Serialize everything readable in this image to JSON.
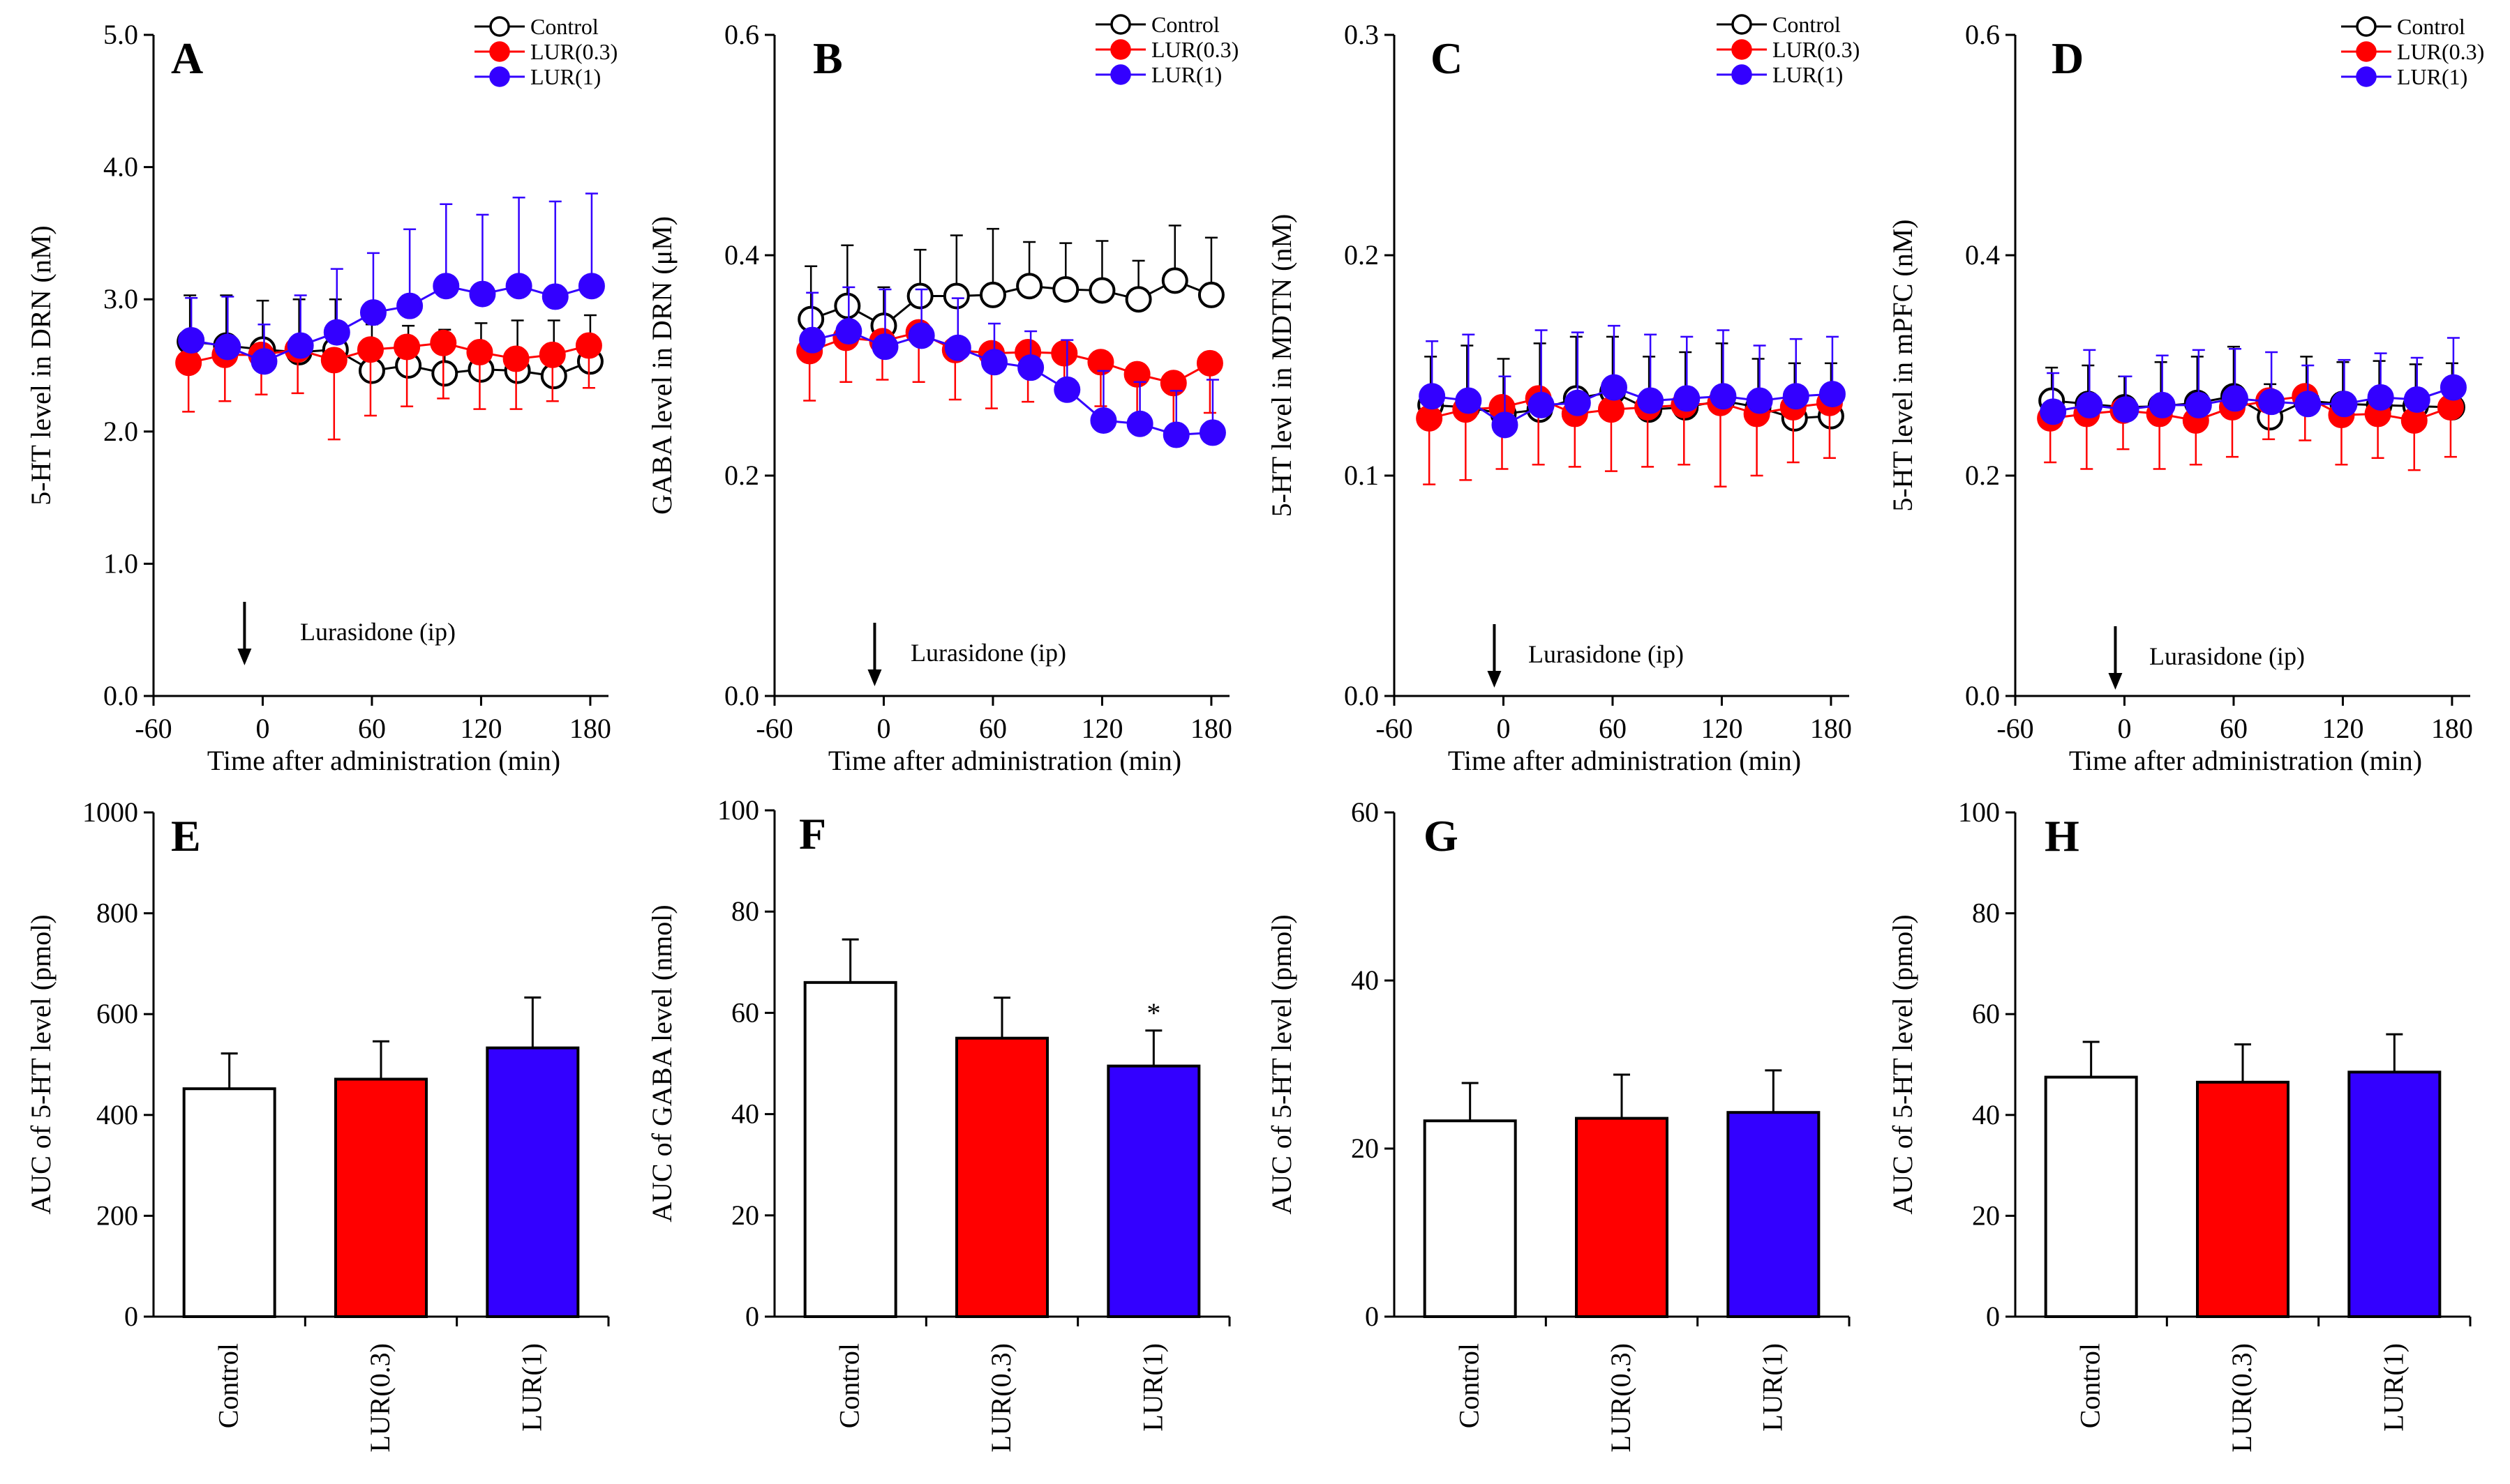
{
  "colors": {
    "control": "#ffffff",
    "lur03": "#ff0000",
    "lur1": "#3300ff",
    "axis": "#000000"
  },
  "legend": {
    "entries": [
      "Control",
      "LUR(0.3)",
      "LUR(1)"
    ]
  },
  "chart_data": [
    {
      "type": "line",
      "panel": "A",
      "title": "",
      "xlabel": "Time after administration (min)",
      "ylabel": "5-HT level in DRN (nM)",
      "xlim": [
        -60,
        190
      ],
      "ylim": [
        0,
        5
      ],
      "xticks": [
        -60,
        0,
        60,
        120,
        180
      ],
      "xtick_labels": [
        "-60",
        "0",
        "60",
        "120",
        "180"
      ],
      "yticks": [
        0,
        1,
        2,
        3,
        4,
        5
      ],
      "ytick_labels": [
        "0.0",
        "1.0",
        "2.0",
        "3.0",
        "4.0",
        "5.0"
      ],
      "x": [
        -40,
        -20,
        0,
        20,
        40,
        60,
        80,
        100,
        120,
        140,
        160,
        180
      ],
      "annotation": "Lurasidone (ip)",
      "arrow_x": -10,
      "series": [
        {
          "name": "Control",
          "values": [
            2.68,
            2.65,
            2.62,
            2.6,
            2.62,
            2.46,
            2.5,
            2.44,
            2.47,
            2.46,
            2.42,
            2.53
          ],
          "errors": [
            0.35,
            0.38,
            0.37,
            0.4,
            0.38,
            0.35,
            0.3,
            0.33,
            0.35,
            0.38,
            0.42,
            0.35
          ]
        },
        {
          "name": "LUR(0.3)",
          "values": [
            2.52,
            2.58,
            2.58,
            2.62,
            2.54,
            2.62,
            2.64,
            2.67,
            2.6,
            2.55,
            2.58,
            2.65
          ],
          "errors": [
            0.37,
            0.35,
            0.3,
            0.33,
            0.6,
            0.5,
            0.45,
            0.42,
            0.43,
            0.38,
            0.35,
            0.32
          ]
        },
        {
          "name": "LUR(1)",
          "values": [
            2.69,
            2.64,
            2.53,
            2.65,
            2.75,
            2.9,
            2.95,
            3.1,
            3.04,
            3.1,
            3.02,
            3.1
          ],
          "errors": [
            0.32,
            0.38,
            0.28,
            0.38,
            0.48,
            0.45,
            0.58,
            0.62,
            0.6,
            0.67,
            0.72,
            0.7
          ]
        }
      ]
    },
    {
      "type": "line",
      "panel": "B",
      "title": "",
      "xlabel": "Time after administration (min)",
      "ylabel": "GABA level in DRN (μM)",
      "xlim": [
        -60,
        190
      ],
      "ylim": [
        0,
        0.6
      ],
      "xticks": [
        -60,
        0,
        60,
        120,
        180
      ],
      "xtick_labels": [
        "-60",
        "0",
        "60",
        "120",
        "180"
      ],
      "yticks": [
        0,
        0.2,
        0.4,
        0.6
      ],
      "ytick_labels": [
        "0.0",
        "0.2",
        "0.4",
        "0.6"
      ],
      "x": [
        -40,
        -20,
        0,
        20,
        40,
        60,
        80,
        100,
        120,
        140,
        160,
        180
      ],
      "annotation": "Lurasidone (ip)",
      "arrow_x": -5,
      "series": [
        {
          "name": "Control",
          "values": [
            0.342,
            0.354,
            0.336,
            0.363,
            0.363,
            0.364,
            0.372,
            0.369,
            0.368,
            0.36,
            0.377,
            0.364
          ],
          "errors": [
            0.048,
            0.055,
            0.035,
            0.042,
            0.055,
            0.06,
            0.04,
            0.042,
            0.045,
            0.035,
            0.05,
            0.052
          ]
        },
        {
          "name": "LUR(0.3)",
          "values": [
            0.313,
            0.325,
            0.322,
            0.33,
            0.314,
            0.311,
            0.312,
            0.311,
            0.303,
            0.292,
            0.284,
            0.302
          ],
          "errors": [
            0.045,
            0.04,
            0.035,
            0.045,
            0.045,
            0.05,
            0.045,
            0.04,
            0.04,
            0.04,
            0.045,
            0.045
          ]
        },
        {
          "name": "LUR(1)",
          "values": [
            0.323,
            0.331,
            0.317,
            0.327,
            0.316,
            0.303,
            0.298,
            0.278,
            0.25,
            0.247,
            0.237,
            0.239
          ],
          "errors": [
            0.043,
            0.04,
            0.052,
            0.042,
            0.045,
            0.035,
            0.033,
            0.045,
            0.045,
            0.038,
            0.04,
            0.048
          ]
        }
      ]
    },
    {
      "type": "line",
      "panel": "C",
      "title": "",
      "xlabel": "Time after administration (min)",
      "ylabel": "5-HT level in MDTN (nM)",
      "xlim": [
        -60,
        190
      ],
      "ylim": [
        0,
        0.3
      ],
      "xticks": [
        -60,
        0,
        60,
        120,
        180
      ],
      "xtick_labels": [
        "-60",
        "0",
        "60",
        "120",
        "180"
      ],
      "yticks": [
        0,
        0.1,
        0.2,
        0.3
      ],
      "ytick_labels": [
        "0.0",
        "0.1",
        "0.2",
        "0.3"
      ],
      "x": [
        -40,
        -20,
        0,
        20,
        40,
        60,
        80,
        100,
        120,
        140,
        160,
        180
      ],
      "annotation": "Lurasidone (ip)",
      "arrow_x": -5,
      "series": [
        {
          "name": "Control",
          "values": [
            0.132,
            0.131,
            0.128,
            0.13,
            0.135,
            0.138,
            0.13,
            0.131,
            0.134,
            0.131,
            0.126,
            0.127
          ],
          "errors": [
            0.022,
            0.028,
            0.025,
            0.03,
            0.028,
            0.025,
            0.024,
            0.025,
            0.026,
            0.022,
            0.025,
            0.024
          ]
        },
        {
          "name": "LUR(0.3)",
          "values": [
            0.126,
            0.13,
            0.131,
            0.135,
            0.128,
            0.13,
            0.131,
            0.132,
            0.133,
            0.128,
            0.131,
            0.133
          ],
          "errors": [
            0.03,
            0.032,
            0.028,
            0.03,
            0.024,
            0.028,
            0.027,
            0.027,
            0.038,
            0.028,
            0.025,
            0.025
          ]
        },
        {
          "name": "LUR(1)",
          "values": [
            0.136,
            0.134,
            0.123,
            0.132,
            0.133,
            0.14,
            0.134,
            0.135,
            0.136,
            0.134,
            0.136,
            0.137
          ],
          "errors": [
            0.025,
            0.03,
            0.022,
            0.034,
            0.032,
            0.028,
            0.03,
            0.028,
            0.03,
            0.025,
            0.026,
            0.026
          ]
        }
      ]
    },
    {
      "type": "line",
      "panel": "D",
      "title": "",
      "xlabel": "Time after administration (min)",
      "ylabel": "5-HT level in mPFC (nM)",
      "xlim": [
        -60,
        190
      ],
      "ylim": [
        0,
        0.6
      ],
      "xticks": [
        -60,
        0,
        60,
        120,
        180
      ],
      "xtick_labels": [
        "-60",
        "0",
        "60",
        "120",
        "180"
      ],
      "yticks": [
        0,
        0.2,
        0.4,
        0.6
      ],
      "ytick_labels": [
        "0.0",
        "0.2",
        "0.4",
        "0.6"
      ],
      "x": [
        -40,
        -20,
        0,
        20,
        40,
        60,
        80,
        100,
        120,
        140,
        160,
        180
      ],
      "annotation": "Lurasidone (ip)",
      "arrow_x": -5,
      "series": [
        {
          "name": "Control",
          "values": [
            0.268,
            0.265,
            0.262,
            0.263,
            0.266,
            0.272,
            0.253,
            0.268,
            0.265,
            0.264,
            0.263,
            0.262
          ],
          "errors": [
            0.03,
            0.035,
            0.028,
            0.04,
            0.042,
            0.045,
            0.03,
            0.04,
            0.038,
            0.04,
            0.038,
            0.04
          ]
        },
        {
          "name": "LUR(0.3)",
          "values": [
            0.252,
            0.256,
            0.259,
            0.256,
            0.25,
            0.262,
            0.268,
            0.272,
            0.255,
            0.256,
            0.25,
            0.262
          ],
          "errors": [
            0.04,
            0.05,
            0.035,
            0.05,
            0.04,
            0.045,
            0.035,
            0.04,
            0.045,
            0.04,
            0.045,
            0.045
          ]
        },
        {
          "name": "LUR(1)",
          "values": [
            0.258,
            0.264,
            0.26,
            0.264,
            0.264,
            0.27,
            0.267,
            0.265,
            0.265,
            0.271,
            0.269,
            0.28
          ],
          "errors": [
            0.035,
            0.05,
            0.03,
            0.045,
            0.05,
            0.045,
            0.045,
            0.035,
            0.04,
            0.04,
            0.038,
            0.045
          ]
        }
      ]
    },
    {
      "type": "bar",
      "panel": "E",
      "title": "",
      "xlabel": "",
      "ylabel": "AUC of 5-HT level (pmol)",
      "ylim": [
        0,
        1000
      ],
      "yticks": [
        0,
        200,
        400,
        600,
        800,
        1000
      ],
      "ytick_labels": [
        "0",
        "200",
        "400",
        "600",
        "800",
        "1000"
      ],
      "categories": [
        "Control",
        "LUR(0.3)",
        "LUR(1)"
      ],
      "values": [
        452,
        471,
        533
      ],
      "errors": [
        70,
        75,
        100
      ],
      "marks": [
        "",
        "",
        ""
      ]
    },
    {
      "type": "bar",
      "panel": "F",
      "title": "",
      "xlabel": "",
      "ylabel": "AUC of GABA level (nmol)",
      "ylim": [
        0,
        100
      ],
      "yticks": [
        0,
        20,
        40,
        60,
        80,
        100
      ],
      "ytick_labels": [
        "0",
        "20",
        "40",
        "60",
        "80",
        "100"
      ],
      "categories": [
        "Control",
        "LUR(0.3)",
        "LUR(1)"
      ],
      "values": [
        66,
        55,
        49.5
      ],
      "errors": [
        8.5,
        8,
        7
      ],
      "marks": [
        "",
        "",
        "*"
      ]
    },
    {
      "type": "bar",
      "panel": "G",
      "title": "",
      "xlabel": "",
      "ylabel": "AUC of 5-HT level (pmol)",
      "ylim": [
        0,
        60
      ],
      "yticks": [
        0,
        20,
        40,
        60
      ],
      "ytick_labels": [
        "0",
        "20",
        "40",
        "60"
      ],
      "categories": [
        "Control",
        "LUR(0.3)",
        "LUR(1)"
      ],
      "values": [
        23.3,
        23.6,
        24.3
      ],
      "errors": [
        4.5,
        5.2,
        5.0
      ],
      "marks": [
        "",
        "",
        ""
      ]
    },
    {
      "type": "bar",
      "panel": "H",
      "title": "",
      "xlabel": "",
      "ylabel": "AUC of 5-HT level (pmol)",
      "ylim": [
        0,
        100
      ],
      "yticks": [
        0,
        20,
        40,
        60,
        80,
        100
      ],
      "ytick_labels": [
        "0",
        "20",
        "40",
        "60",
        "80",
        "100"
      ],
      "categories": [
        "Control",
        "LUR(0.3)",
        "LUR(1)"
      ],
      "values": [
        47.5,
        46.5,
        48.5
      ],
      "errors": [
        7,
        7.5,
        7.5
      ],
      "marks": [
        "",
        "",
        ""
      ]
    }
  ]
}
